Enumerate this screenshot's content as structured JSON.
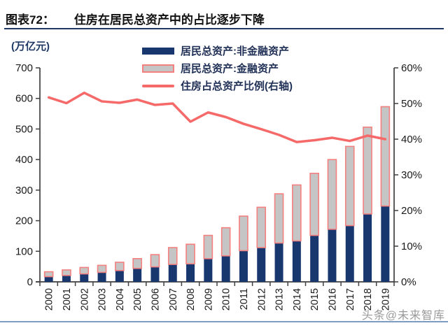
{
  "header": {
    "tag": "图表72：",
    "title": "住房在居民总资产中的占比逐步下降"
  },
  "legend": {
    "items": [
      {
        "label": "居民总资产:非金融资产",
        "swatch": "navy-bar"
      },
      {
        "label": "居民总资产:金融资产",
        "swatch": "gray-bar-red-border"
      },
      {
        "label": "住房占总资产比例(右轴)",
        "swatch": "red-line"
      }
    ]
  },
  "watermark": "头条@未来智库",
  "colors": {
    "navy_bar": "#17376e",
    "gray_bar_fill": "#c5c5c5",
    "gray_bar_border": "#f48080",
    "line_red": "#f56969",
    "accent_navy": "#1f3864",
    "axis_gray": "#3f3f3f",
    "footer_rule_blue": "#7d9cc0",
    "watermark_gray": "#9a9a9a"
  },
  "chart_data": {
    "type": "bar",
    "subtype": "stacked-bars-with-right-axis-line",
    "categories": [
      "2000",
      "2001",
      "2002",
      "2003",
      "2004",
      "2005",
      "2006",
      "2007",
      "2008",
      "2009",
      "2010",
      "2011",
      "2012",
      "2013",
      "2014",
      "2015",
      "2016",
      "2017",
      "2018",
      "2019"
    ],
    "series": [
      {
        "name": "居民总资产:非金融资产",
        "type": "bar",
        "stack": "assets",
        "axis": "left",
        "values": [
          17,
          21,
          26,
          31,
          37,
          44,
          49,
          57,
          59,
          76,
          85,
          102,
          112,
          127,
          134,
          152,
          172,
          184,
          222,
          248
        ]
      },
      {
        "name": "居民总资产:金融资产",
        "type": "bar",
        "stack": "assets",
        "axis": "left",
        "values": [
          16,
          18,
          21,
          23,
          27,
          32,
          40,
          55,
          64,
          76,
          92,
          113,
          132,
          161,
          183,
          203,
          228,
          259,
          284,
          325
        ]
      },
      {
        "name": "住房占总资产比例(右轴)",
        "type": "line",
        "axis": "right",
        "values": [
          51.7,
          50.1,
          53.0,
          50.6,
          50.2,
          51.1,
          49.6,
          50.0,
          44.9,
          47.5,
          46.2,
          44.3,
          42.8,
          41.2,
          39.2,
          39.7,
          40.4,
          39.5,
          41.0,
          40.0
        ]
      }
    ],
    "left_axis": {
      "label": "(万亿元)",
      "min": 0,
      "max": 700,
      "step": 100
    },
    "right_axis": {
      "min": 0,
      "max": 60,
      "step": 10,
      "suffix": "%"
    },
    "grid": false,
    "legend_position": "top-center"
  }
}
